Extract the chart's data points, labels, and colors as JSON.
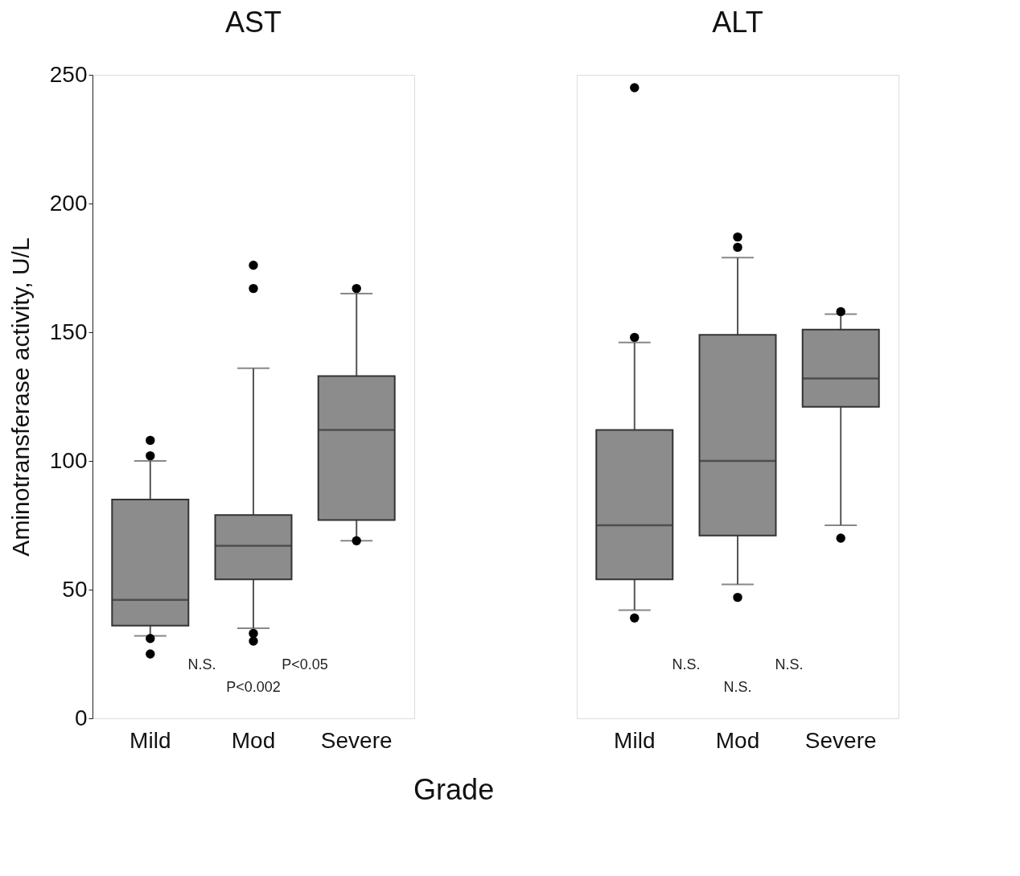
{
  "chart_data": [
    {
      "type": "box",
      "title": "AST",
      "ylabel": "Aminotransferase activity, U/L",
      "xlabel": "Grade",
      "categories": [
        "Mild",
        "Mod",
        "Severe"
      ],
      "ylim": [
        0,
        250
      ],
      "yticks": [
        0,
        50,
        100,
        150,
        200,
        250
      ],
      "grid": false,
      "color": "#8c8c8c",
      "boxes": [
        {
          "low": 32,
          "q1": 36,
          "median": 46,
          "q3": 85,
          "high": 100,
          "outliers": [
            108,
            102,
            31,
            25
          ]
        },
        {
          "low": 35,
          "q1": 54,
          "median": 67,
          "q3": 79,
          "high": 136,
          "outliers": [
            176,
            167,
            33,
            30
          ]
        },
        {
          "low": 69,
          "q1": 77,
          "median": 112,
          "q3": 133,
          "high": 165,
          "outliers": [
            167,
            69
          ]
        }
      ],
      "annotations": [
        "N.S.",
        "P<0.05",
        "P<0.002"
      ]
    },
    {
      "type": "box",
      "title": "ALT",
      "categories": [
        "Mild",
        "Mod",
        "Severe"
      ],
      "ylim": [
        0,
        250
      ],
      "yticks": [
        0,
        50,
        100,
        150,
        200,
        250
      ],
      "tick_labels": "x",
      "grid": false,
      "color": "#8c8c8c",
      "boxes": [
        {
          "low": 42,
          "q1": 54,
          "median": 75,
          "q3": 112,
          "high": 146,
          "outliers": [
            245,
            148,
            39
          ]
        },
        {
          "low": 52,
          "q1": 71,
          "median": 100,
          "q3": 149,
          "high": 179,
          "outliers": [
            187,
            183,
            47
          ]
        },
        {
          "low": 75,
          "q1": 121,
          "median": 132,
          "q3": 151,
          "high": 157,
          "outliers": [
            158,
            70
          ]
        }
      ],
      "annotations": [
        "N.S.",
        "N.S.",
        "N.S."
      ]
    }
  ]
}
